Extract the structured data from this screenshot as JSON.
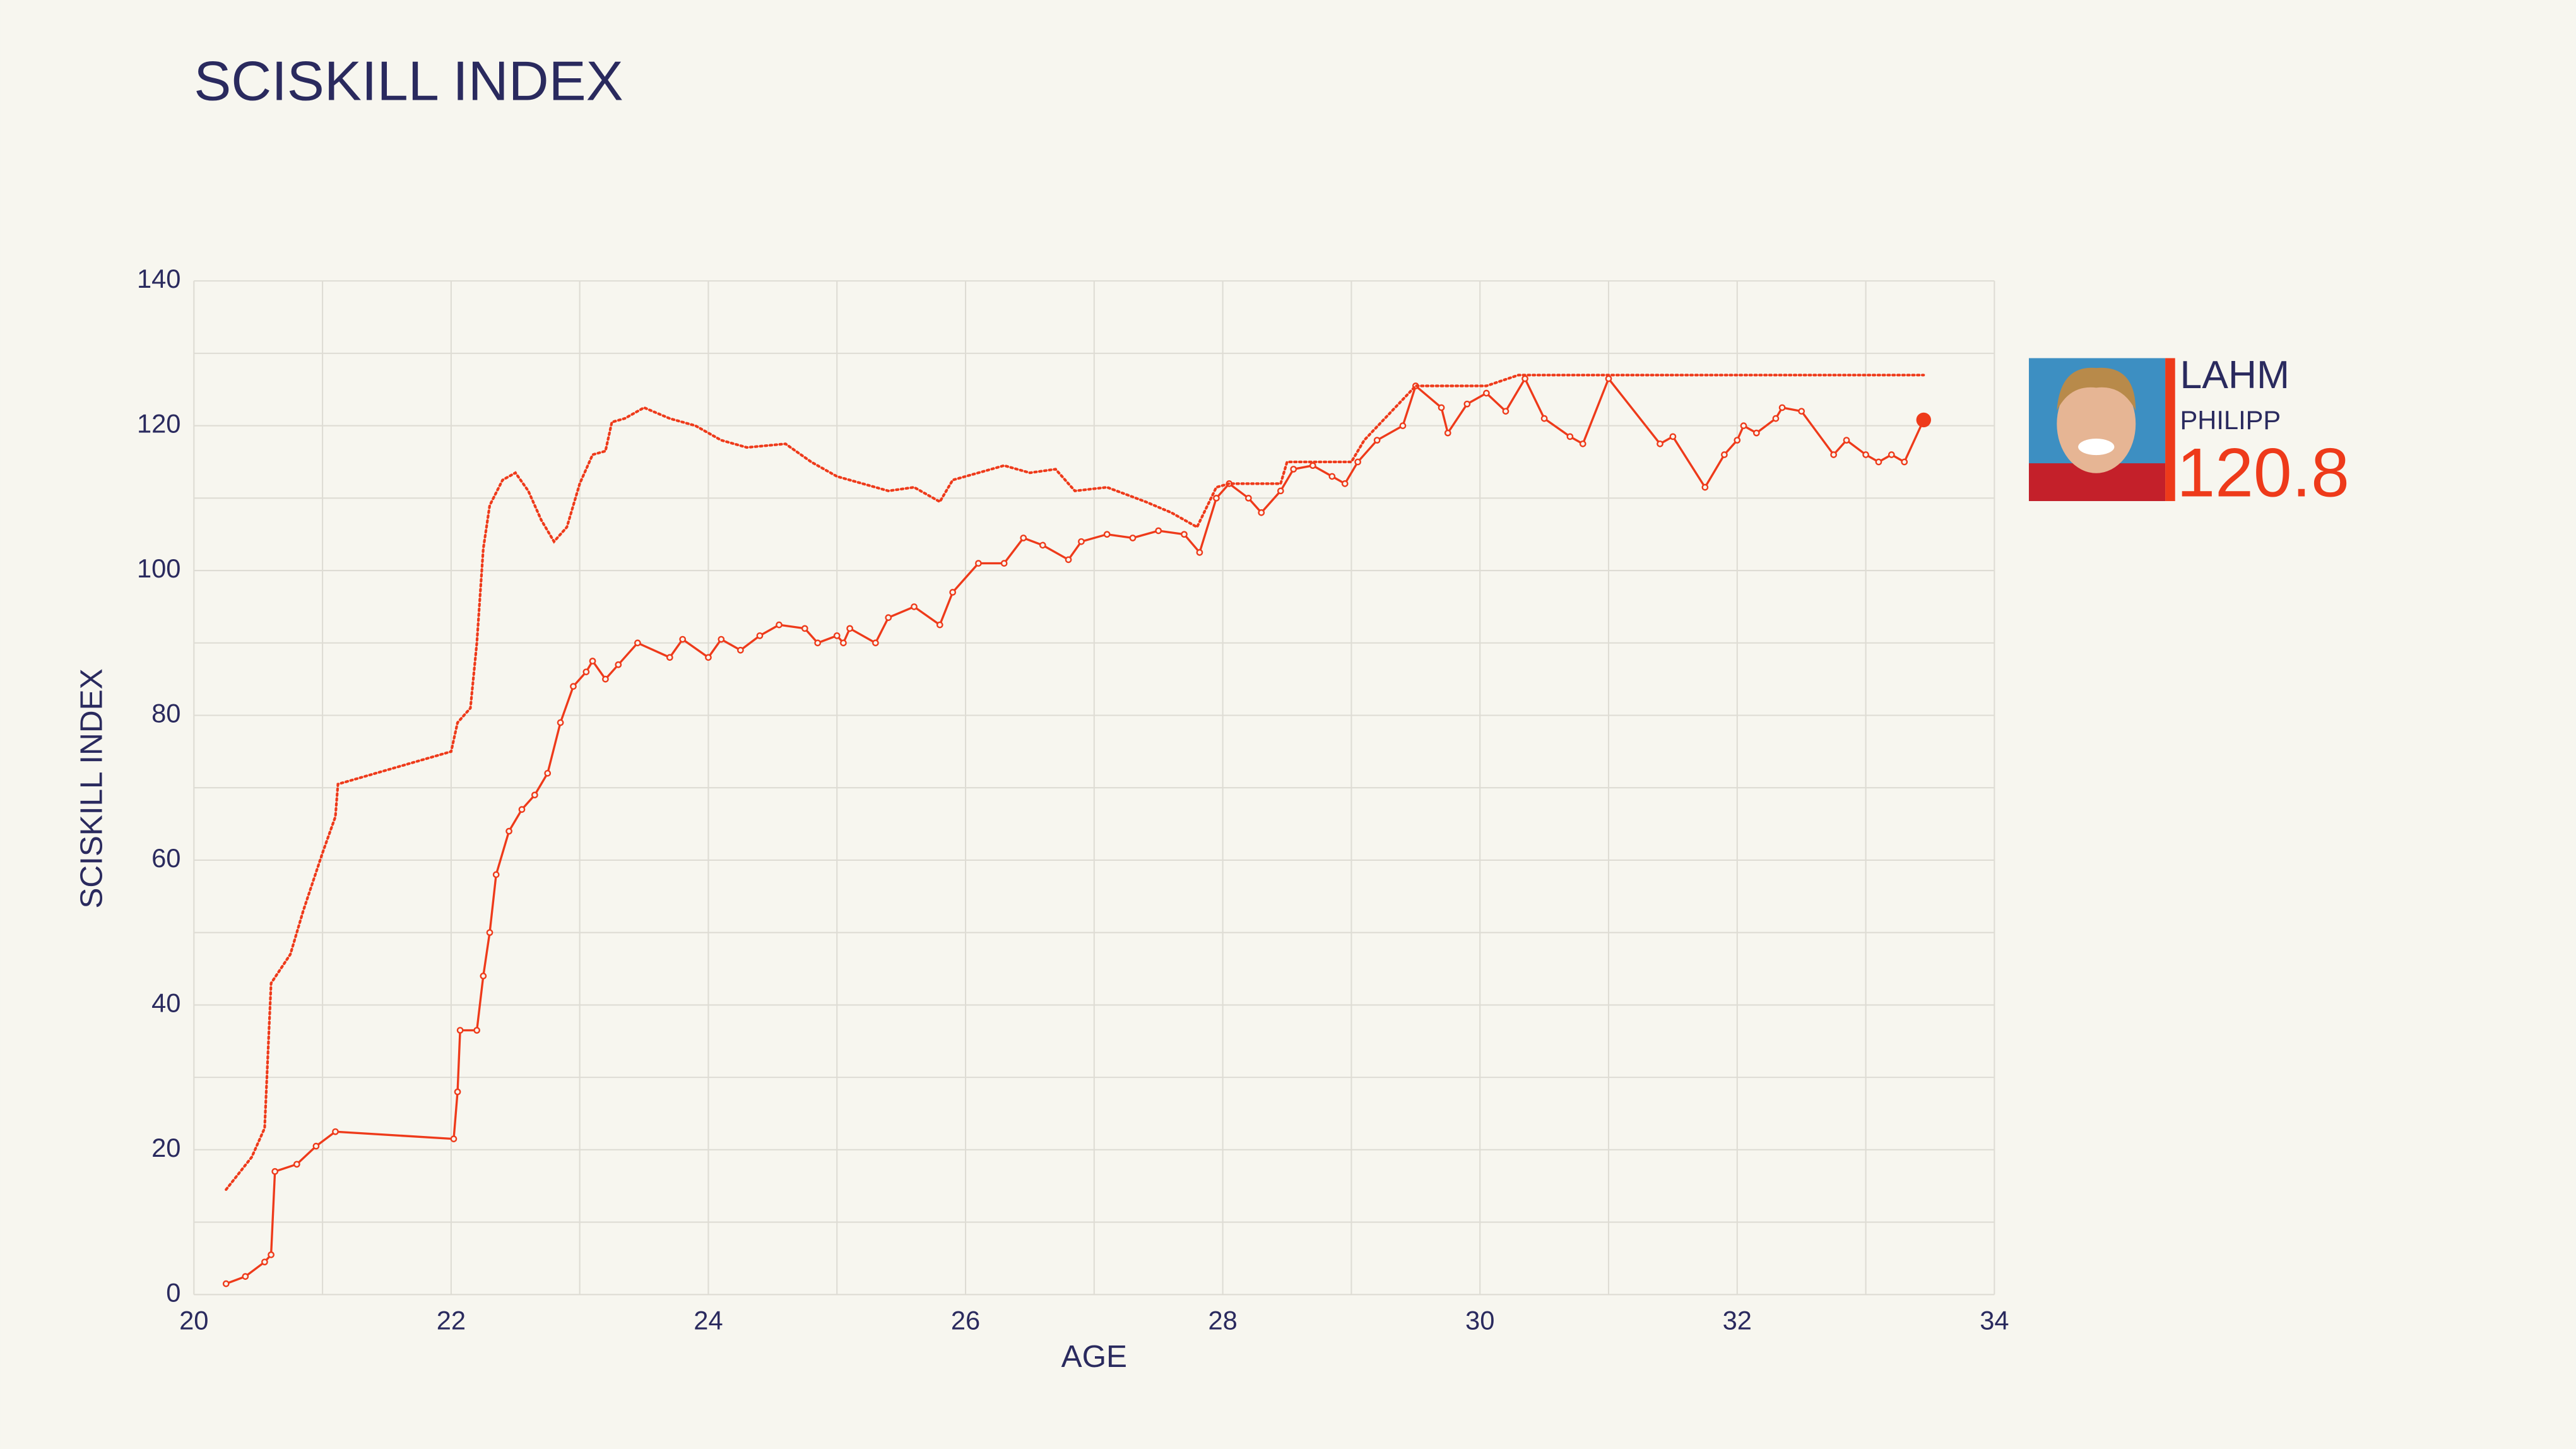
{
  "chart_data": {
    "type": "line",
    "title": "SCISKILL INDEX",
    "x_label": "AGE",
    "y_label": "SCISKILL INDEX",
    "xlim": [
      20,
      34
    ],
    "xticks": [
      20,
      22,
      24,
      26,
      28,
      30,
      32,
      34
    ],
    "xgrid": [
      21,
      23,
      25,
      27,
      29,
      31,
      33
    ],
    "ylim": [
      0,
      140
    ],
    "yticks": [
      0,
      20,
      40,
      60,
      80,
      100,
      120,
      140
    ],
    "ygrid": [
      10,
      30,
      50,
      70,
      90,
      110,
      130
    ],
    "grid": true,
    "series": [
      {
        "color": "#ee3a1a",
        "style": "solid",
        "markers": true,
        "x": [
          20.25,
          20.4,
          20.55,
          20.6,
          20.63,
          20.8,
          20.95,
          21.1,
          22.02,
          22.05,
          22.07,
          22.2,
          22.25,
          22.3,
          22.35,
          22.45,
          22.55,
          22.65,
          22.75,
          22.85,
          22.95,
          23.05,
          23.1,
          23.2,
          23.3,
          23.45,
          23.7,
          23.8,
          24.0,
          24.1,
          24.25,
          24.4,
          24.55,
          24.75,
          24.85,
          25.0,
          25.05,
          25.1,
          25.3,
          25.4,
          25.6,
          25.8,
          25.9,
          26.1,
          26.3,
          26.45,
          26.6,
          26.8,
          26.9,
          27.1,
          27.3,
          27.5,
          27.7,
          27.82,
          27.95,
          28.05,
          28.2,
          28.3,
          28.45,
          28.55,
          28.7,
          28.85,
          28.95,
          29.05,
          29.2,
          29.4,
          29.5,
          29.7,
          29.75,
          29.9,
          30.05,
          30.2,
          30.35,
          30.5,
          30.7,
          30.8,
          31.0,
          31.4,
          31.5,
          31.75,
          31.9,
          32.0,
          32.05,
          32.15,
          32.3,
          32.35,
          32.5,
          32.75,
          32.85,
          33.0,
          33.1,
          33.2,
          33.3,
          33.45
        ],
        "values": [
          1.5,
          2.5,
          4.5,
          5.5,
          17,
          18,
          20.5,
          22.5,
          21.5,
          28,
          36.5,
          36.5,
          44,
          50,
          58,
          64,
          67,
          69,
          72,
          79,
          84,
          86,
          87.5,
          85,
          87,
          90,
          88,
          90.5,
          88,
          90.5,
          89,
          91,
          92.5,
          92,
          90,
          91,
          90,
          92,
          90,
          93.5,
          95,
          92.5,
          97,
          101,
          101,
          104.5,
          103.5,
          101.5,
          104,
          105,
          104.5,
          105.5,
          105,
          102.5,
          110,
          112,
          110,
          108,
          111,
          114,
          114.5,
          113,
          112,
          115,
          118,
          120,
          125.5,
          122.5,
          119,
          123,
          124.5,
          122,
          126.5,
          121,
          118.5,
          117.5,
          126.5,
          117.5,
          118.5,
          111.5,
          116,
          118,
          120,
          119,
          121,
          122.5,
          122,
          116,
          118,
          116,
          115,
          116,
          115,
          120.8
        ]
      },
      {
        "color": "#ee3a1a",
        "style": "dotted",
        "markers": false,
        "x": [
          20.25,
          20.45,
          20.55,
          20.6,
          20.75,
          20.85,
          21.0,
          21.1,
          21.12,
          22.0,
          22.05,
          22.15,
          22.2,
          22.25,
          22.3,
          22.4,
          22.5,
          22.6,
          22.7,
          22.8,
          22.9,
          23.0,
          23.1,
          23.2,
          23.25,
          23.35,
          23.5,
          23.7,
          23.9,
          24.1,
          24.3,
          24.6,
          24.8,
          25.0,
          25.3,
          25.4,
          25.6,
          25.8,
          25.9,
          26.1,
          26.3,
          26.5,
          26.7,
          26.85,
          27.1,
          27.4,
          27.6,
          27.8,
          27.95,
          28.05,
          28.45,
          28.5,
          29.0,
          29.1,
          29.5,
          30.05,
          30.3,
          31.0,
          33.45
        ],
        "values": [
          14.5,
          19,
          23,
          43,
          47,
          53,
          61,
          66,
          70.5,
          75,
          79,
          81,
          90,
          103,
          109,
          112.5,
          113.5,
          111,
          107,
          104,
          106,
          112,
          116,
          116.5,
          120.5,
          121,
          122.5,
          121,
          120,
          118,
          117,
          117.5,
          115,
          113,
          111.5,
          111,
          111.5,
          109.5,
          112.5,
          113.5,
          114.5,
          113.5,
          114,
          111,
          111.5,
          109.5,
          108,
          106,
          111.5,
          112,
          112,
          115,
          115,
          118,
          125.5,
          125.5,
          127,
          127,
          127
        ]
      }
    ],
    "player": {
      "last_name": "LAHM",
      "first_name": "PHILIPP",
      "score": "120.8"
    }
  }
}
